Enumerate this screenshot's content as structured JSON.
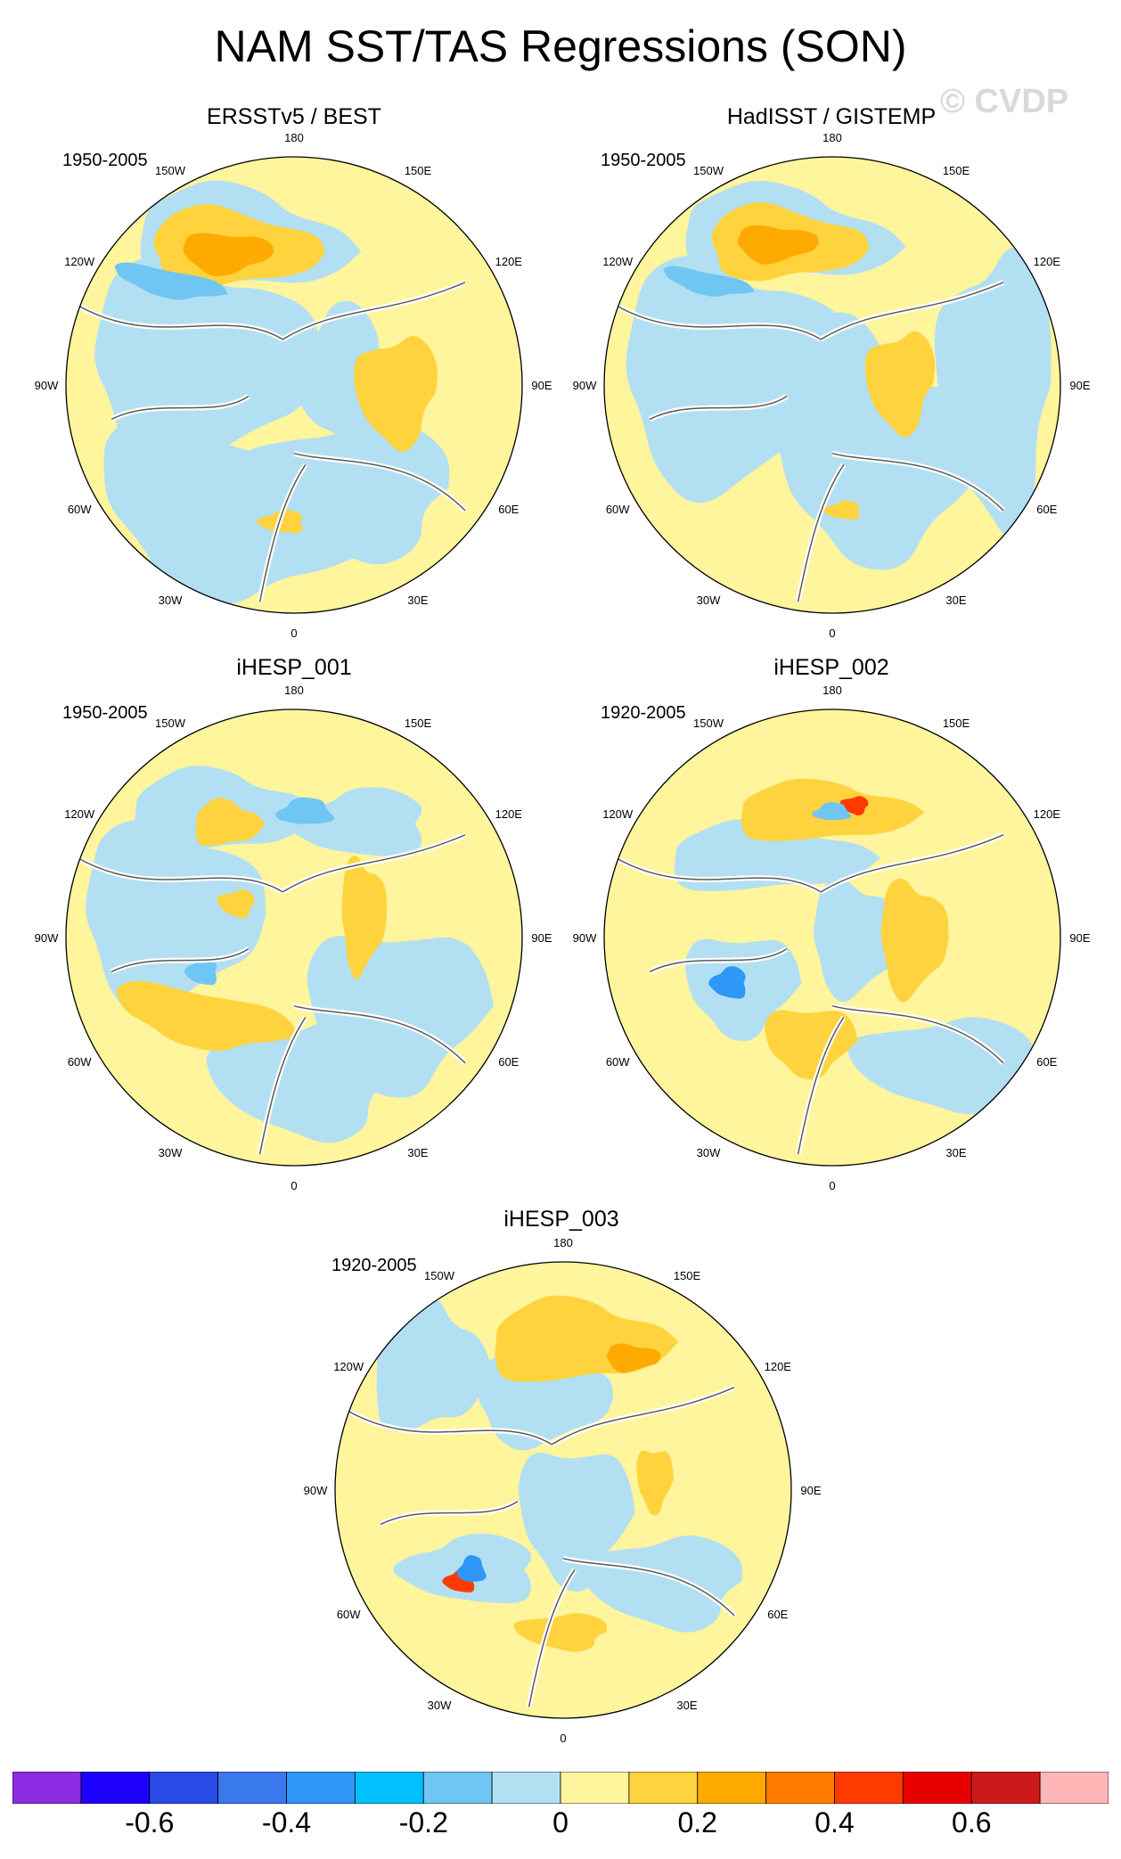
{
  "title": "NAM SST/TAS Regressions (SON)",
  "watermark": "© CVDP",
  "longitude_labels": [
    "180",
    "150E",
    "120E",
    "90E",
    "60E",
    "30E",
    "0",
    "30W",
    "60W",
    "90W",
    "120W",
    "150W"
  ],
  "palette": {
    "n060": "#8b2be2",
    "n055": "#1e00ff",
    "n050": "#2a4be6",
    "n045": "#3a78ee",
    "n040": "#2e97f7",
    "n035": "#00c0ff",
    "n030": "#6fc6f2",
    "n025": "#b3dff3",
    "p000": "#fff59d",
    "p005": "#ffd33d",
    "p010": "#ffaa00",
    "p015": "#ff7b00",
    "p020": "#ff3a00",
    "p025": "#e80000",
    "p030": "#cc1a1a",
    "p035": "#ffb6b6",
    "land_edge": "#ffffff",
    "coast": "#5a5a5a"
  },
  "panels": [
    {
      "name": "ERSSTv5 / BEST",
      "period": "1950-2005"
    },
    {
      "name": "HadISST / GISTEMP",
      "period": "1950-2005"
    },
    {
      "name": "iHESP_001",
      "period": "1950-2005"
    },
    {
      "name": "iHESP_002",
      "period": "1920-2005"
    },
    {
      "name": "iHESP_003",
      "period": "1920-2005"
    }
  ],
  "chart_data": {
    "type": "heatmap",
    "projection": "north polar stereographic",
    "title": "NAM SST/TAS Regressions (SON)",
    "colorbar": {
      "levels": [
        -0.7,
        -0.6,
        -0.5,
        -0.4,
        -0.3,
        -0.2,
        -0.1,
        0,
        0.1,
        0.2,
        0.3,
        0.4,
        0.5,
        0.6,
        0.7
      ],
      "tick_labels": [
        "-0.6",
        "-0.4",
        "-0.2",
        "0",
        "0.2",
        "0.4",
        "0.6"
      ],
      "tick_values": [
        -0.6,
        -0.4,
        -0.2,
        0,
        0.2,
        0.4,
        0.6
      ],
      "colors": [
        "#8b2be2",
        "#1e00ff",
        "#2a4be6",
        "#3a78ee",
        "#2e97f7",
        "#00c0ff",
        "#6fc6f2",
        "#b3dff3",
        "#fff59d",
        "#ffd33d",
        "#ffaa00",
        "#ff7b00",
        "#ff3a00",
        "#e80000",
        "#cc1a1a",
        "#ffb6b6"
      ]
    }
  }
}
